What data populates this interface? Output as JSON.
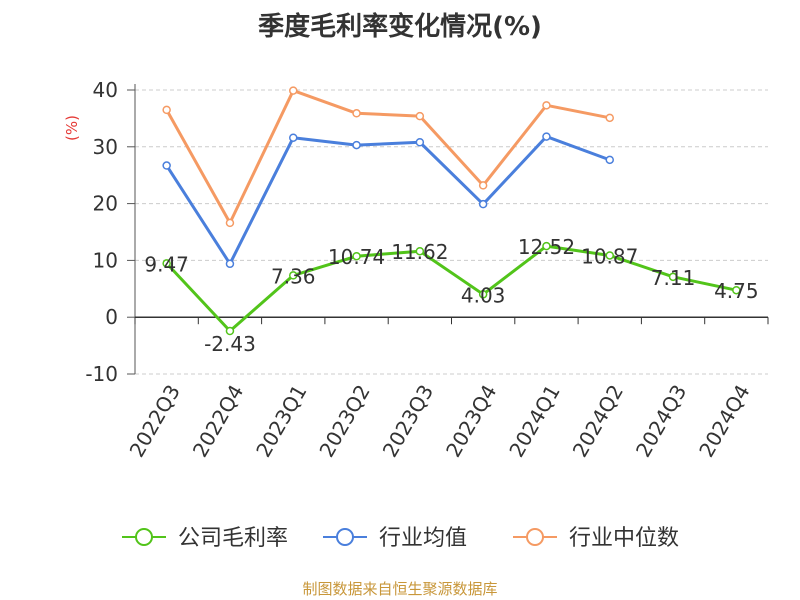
{
  "chart_data": {
    "type": "line",
    "title": "季度毛利率变化情况(%)",
    "ylabel": "(%)",
    "xlabel": "",
    "categories": [
      "2022Q3",
      "2022Q4",
      "2023Q1",
      "2023Q2",
      "2023Q3",
      "2023Q4",
      "2024Q1",
      "2024Q2",
      "2024Q3",
      "2024Q4"
    ],
    "ylim": [
      -10,
      40
    ],
    "yticks": [
      "-10",
      "0",
      "10",
      "20",
      "30",
      "40"
    ],
    "grid": true,
    "legend_position": "bottom",
    "series": [
      {
        "name": "公司毛利率",
        "color": "#52c41a",
        "values": [
          9.47,
          -2.43,
          7.36,
          10.74,
          11.62,
          4.03,
          12.52,
          10.87,
          7.11,
          4.75
        ],
        "labels": [
          "9.47",
          "-2.43",
          "7.36",
          "10.74",
          "11.62",
          "4.03",
          "12.52",
          "10.87",
          "7.11",
          "4.75"
        ]
      },
      {
        "name": "行业均值",
        "color": "#4a7fdc",
        "values": [
          26.7,
          9.4,
          31.6,
          30.3,
          30.8,
          19.9,
          31.8,
          27.7,
          null,
          null
        ]
      },
      {
        "name": "行业中位数",
        "color": "#f59a63",
        "values": [
          36.5,
          16.6,
          39.9,
          35.9,
          35.4,
          23.2,
          37.3,
          35.1,
          null,
          null
        ]
      }
    ]
  },
  "footer": "制图数据来自恒生聚源数据库"
}
